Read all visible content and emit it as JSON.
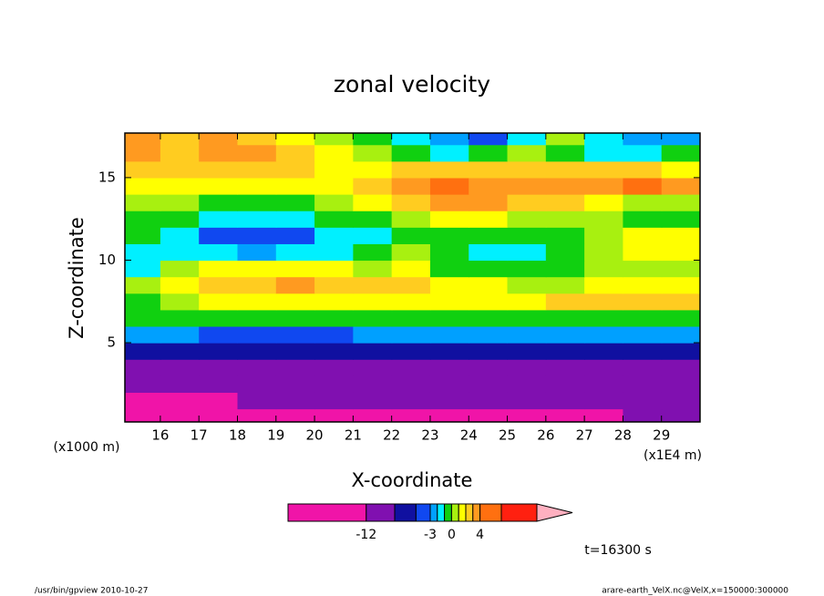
{
  "chart_data": {
    "type": "contour",
    "title": "zonal velocity",
    "x_label": "X-coordinate",
    "y_label": "Z-coordinate",
    "x_units": "(x1E4 m)",
    "y_units": "(x1000 m)",
    "xlim": [
      15.08,
      30
    ],
    "ylim": [
      0.2,
      17.7
    ],
    "xticks": [
      16,
      17,
      18,
      19,
      20,
      21,
      22,
      23,
      24,
      25,
      26,
      27,
      28,
      29
    ],
    "yticks": [
      5,
      10,
      15
    ],
    "x": [
      15.5,
      16.5,
      17.5,
      18.5,
      19.5,
      20.5,
      21.5,
      22.5,
      23.5,
      24.5,
      25.5,
      26.5,
      27.5,
      28.5,
      29.5
    ],
    "y": [
      0.5,
      1.5,
      2.5,
      3.5,
      4.5,
      5.5,
      6.5,
      7.5,
      8.5,
      9.5,
      10.5,
      11.5,
      12.5,
      13.5,
      14.5,
      15.5,
      16.5,
      17.5
    ],
    "z": [
      [
        -15,
        -15,
        -15,
        -15,
        -15,
        -15,
        -15,
        -15,
        -15,
        -15,
        -15,
        -15,
        -15,
        -10,
        -10
      ],
      [
        -15,
        -15,
        -15,
        -10,
        -10,
        -10,
        -10,
        -10,
        -10,
        -10,
        -10,
        -10,
        -10,
        -10,
        -10
      ],
      [
        -10,
        -10,
        -10,
        -10,
        -10,
        -10,
        -10,
        -10,
        -10,
        -10,
        -10,
        -10,
        -10,
        -10,
        -10
      ],
      [
        -10,
        -10,
        -10,
        -10,
        -10,
        -10,
        -10,
        -10,
        -10,
        -10,
        -10,
        -10,
        -10,
        -10,
        -10
      ],
      [
        -6.5,
        -6.5,
        -6.5,
        -6.5,
        -6.5,
        -6.5,
        -6.5,
        -6.5,
        -6.5,
        -6.5,
        -6.5,
        -6.5,
        -6.5,
        -6.5,
        -6.5
      ],
      [
        -2.5,
        -2.5,
        -4,
        -4,
        -4,
        -4,
        -2.5,
        -2.5,
        -2.5,
        -2.5,
        -2.5,
        -2.5,
        -2.5,
        -2.5,
        -2.5
      ],
      [
        -0.5,
        -0.5,
        -0.5,
        -0.5,
        -0.5,
        -0.5,
        -0.5,
        -0.5,
        -0.5,
        -0.5,
        -0.5,
        -0.5,
        -0.5,
        -0.5,
        -0.5
      ],
      [
        -0.5,
        0.5,
        1.5,
        1.5,
        1.5,
        1.5,
        1.5,
        1.5,
        1.5,
        1.5,
        1.5,
        2.5,
        2.5,
        2.5,
        2.5
      ],
      [
        0.5,
        1.5,
        2.5,
        2.5,
        3.5,
        2.5,
        2.5,
        2.5,
        1.5,
        1.5,
        0.5,
        0.5,
        1.5,
        1.5,
        1.5
      ],
      [
        -1.5,
        0.5,
        1.5,
        1.5,
        1.5,
        1.5,
        0.5,
        1.5,
        -0.5,
        -0.5,
        -0.5,
        -0.5,
        0.5,
        0.5,
        0.5
      ],
      [
        -1.5,
        -1.5,
        -1.5,
        -2.5,
        -1.5,
        -1.5,
        -0.5,
        0.5,
        -0.5,
        -1.5,
        -1.5,
        -0.5,
        0.5,
        1.5,
        1.5
      ],
      [
        -0.5,
        -1.5,
        -4,
        -4,
        -4,
        -1.5,
        -1.5,
        -0.5,
        -0.5,
        -0.5,
        -0.5,
        -0.5,
        0.5,
        1.5,
        1.5
      ],
      [
        -0.5,
        -0.5,
        -1.5,
        -1.5,
        -1.5,
        -0.5,
        -0.5,
        0.5,
        1.5,
        1.5,
        0.5,
        0.5,
        0.5,
        -0.5,
        -0.5
      ],
      [
        0.5,
        0.5,
        -0.5,
        -0.5,
        -0.5,
        0.5,
        1.5,
        2.5,
        3.5,
        3.5,
        2.5,
        2.5,
        1.5,
        0.5,
        0.5
      ],
      [
        1.5,
        1.5,
        1.5,
        1.5,
        1.5,
        1.5,
        2.5,
        3.5,
        5.5,
        3.5,
        3.5,
        3.5,
        3.5,
        5.5,
        3.5
      ],
      [
        2.5,
        2.5,
        2.5,
        2.5,
        2.5,
        1.5,
        1.5,
        2.5,
        2.5,
        2.5,
        2.5,
        2.5,
        2.5,
        2.5,
        1.5
      ],
      [
        3.5,
        2.5,
        3.5,
        3.5,
        2.5,
        1.5,
        0.5,
        -0.5,
        -1.5,
        -0.5,
        0.5,
        -0.5,
        -1.5,
        -1.5,
        -0.5
      ],
      [
        3.5,
        2.5,
        3.5,
        2.5,
        1.5,
        0.5,
        -0.5,
        -1.5,
        -2.5,
        -4,
        -1.5,
        0.5,
        -1.5,
        -2.5,
        -2.5
      ]
    ],
    "levels": [
      -12,
      -8,
      -5,
      -3,
      -2,
      -1,
      0,
      1,
      2,
      3,
      4,
      7,
      12
    ],
    "colors": [
      "#f014a8",
      "#8010b0",
      "#1010a0",
      "#1048f0",
      "#00a0ff",
      "#00f0ff",
      "#10d010",
      "#a8f010",
      "#ffff00",
      "#ffcc20",
      "#ff9a20",
      "#ff7010",
      "#ff2010",
      "#ff8078"
    ],
    "overflow_color": "#ffb0c0",
    "cbar_lim": [
      -23,
      17
    ],
    "cbar_ticks": [
      -12,
      -3,
      0,
      4
    ],
    "time_label": "t=16300 s",
    "footer_left": "/usr/bin/gpview   2010-10-27",
    "footer_right": "arare-earth_VelX.nc@VelX,x=150000:300000"
  }
}
